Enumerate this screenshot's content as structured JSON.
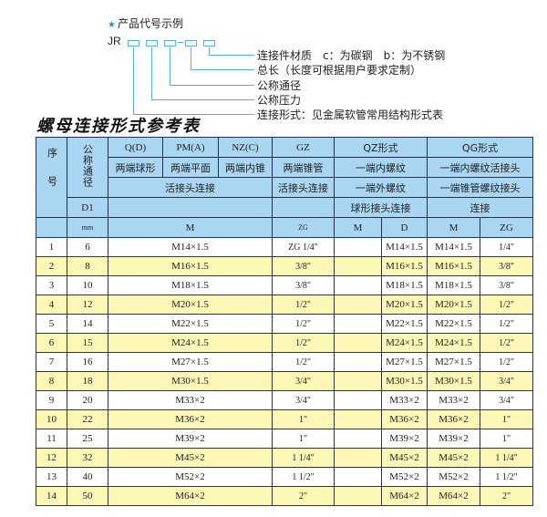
{
  "legend": {
    "heading": "产品代号示例",
    "star_icon_color": "#2a8fd8",
    "code_prefix": "JR",
    "code_separator": "-",
    "items": [
      "连接件材质　c：为碳钢　b：为不锈钢",
      "总长（长度可根据用户要求定制）",
      "公称通径",
      "公称压力",
      "连接形式：见金属软管常用结构形式表"
    ]
  },
  "table_title": "螺母连接形式参考表",
  "header": {
    "seq": "序号",
    "dn": "公称通径",
    "qd": "Q(D)",
    "pm": "PM(A)",
    "nz": "NZ(C)",
    "gz": "GZ",
    "qz": "QZ形式",
    "qg": "QG形式",
    "qd_desc": "两端球形",
    "pm_desc": "两端平面",
    "nz_desc": "两端内锥",
    "gz_desc": "两端锥管",
    "qz_desc1": "一端内螺纹",
    "qg_desc1": "一端内螺纹活接头",
    "union": "活接头连接",
    "gz_union": "活接头连接",
    "qz_desc2": "一端外螺纹",
    "qg_desc2": "一端锥管螺纹接头",
    "d1": "D1",
    "qz_desc3": "球形接头连接",
    "qg_desc3": "连接",
    "mm": "mm",
    "m": "M",
    "zg": "ZG",
    "qz_m": "M",
    "qz_d": "D",
    "qg_m": "M",
    "qg_zg": "ZG"
  },
  "colors": {
    "header_bg": "#a9d6f2",
    "stripe": "#fdf7b6",
    "border": "#1d3550"
  },
  "rows": [
    {
      "no": "1",
      "dn": "6",
      "m": "M14×1.5",
      "zg": "ZG 1/4\"",
      "qz_m": "",
      "qz_d": "M14×1.5",
      "qg_m": "M14×1.5",
      "qg_zg": "1/4\""
    },
    {
      "no": "2",
      "dn": "8",
      "m": "M16×1.5",
      "zg": "3/8\"",
      "qz_m": "",
      "qz_d": "M16×1.5",
      "qg_m": "M16×1.5",
      "qg_zg": "3/8\""
    },
    {
      "no": "3",
      "dn": "10",
      "m": "M18×1.5",
      "zg": "3/8\"",
      "qz_m": "",
      "qz_d": "M18×1.5",
      "qg_m": "M18×1.5",
      "qg_zg": "3/8\""
    },
    {
      "no": "4",
      "dn": "12",
      "m": "M20×1.5",
      "zg": "1/2\"",
      "qz_m": "",
      "qz_d": "M20×1.5",
      "qg_m": "M20×1.5",
      "qg_zg": "1/2\""
    },
    {
      "no": "5",
      "dn": "14",
      "m": "M22×1.5",
      "zg": "1/2\"",
      "qz_m": "",
      "qz_d": "M22×1.5",
      "qg_m": "M22×1.5",
      "qg_zg": "1/2\""
    },
    {
      "no": "6",
      "dn": "15",
      "m": "M24×1.5",
      "zg": "1/2\"",
      "qz_m": "",
      "qz_d": "M24×1.5",
      "qg_m": "M24×1.5",
      "qg_zg": "1/2\""
    },
    {
      "no": "7",
      "dn": "16",
      "m": "M27×1.5",
      "zg": "1/2\"",
      "qz_m": "",
      "qz_d": "M27×1.5",
      "qg_m": "M27×1.5",
      "qg_zg": "1/2\""
    },
    {
      "no": "8",
      "dn": "18",
      "m": "M30×1.5",
      "zg": "3/4\"",
      "qz_m": "",
      "qz_d": "M30×1.5",
      "qg_m": "M30×1.5",
      "qg_zg": "3/4\""
    },
    {
      "no": "9",
      "dn": "20",
      "m": "M33×2",
      "zg": "3/4\"",
      "qz_m": "",
      "qz_d": "M33×2",
      "qg_m": "M33×2",
      "qg_zg": "3/4\""
    },
    {
      "no": "10",
      "dn": "22",
      "m": "M36×2",
      "zg": "1\"",
      "qz_m": "",
      "qz_d": "M36×2",
      "qg_m": "M36×2",
      "qg_zg": "1\""
    },
    {
      "no": "11",
      "dn": "25",
      "m": "M39×2",
      "zg": "1\"",
      "qz_m": "",
      "qz_d": "M39×2",
      "qg_m": "M39×2",
      "qg_zg": "1\""
    },
    {
      "no": "12",
      "dn": "32",
      "m": "M45×2",
      "zg": "1 1/4\"",
      "qz_m": "",
      "qz_d": "M45×2",
      "qg_m": "M45×2",
      "qg_zg": "1 1/4\""
    },
    {
      "no": "13",
      "dn": "40",
      "m": "M52×2",
      "zg": "1 1/2\"",
      "qz_m": "",
      "qz_d": "M52×2",
      "qg_m": "M52×2",
      "qg_zg": "1 1/2\""
    },
    {
      "no": "14",
      "dn": "50",
      "m": "M64×2",
      "zg": "2\"",
      "qz_m": "",
      "qz_d": "M64×2",
      "qg_m": "M64×2",
      "qg_zg": "2\""
    }
  ]
}
